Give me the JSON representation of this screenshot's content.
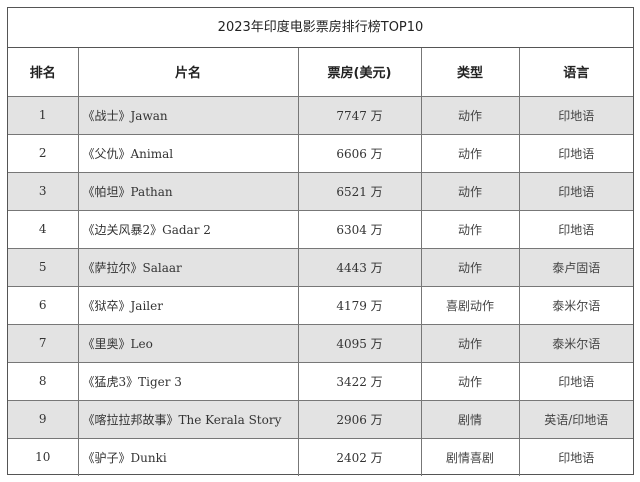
{
  "title": "2023年印度电影票房排行榜TOP10",
  "headers": {
    "rank": "排名",
    "film": "片名",
    "box_office": "票房(美元)",
    "genre": "类型",
    "language": "语言"
  },
  "rows": [
    {
      "rank": "1",
      "film": "《战士》Jawan",
      "box_office": "7747 万",
      "genre": "动作",
      "language": "印地语"
    },
    {
      "rank": "2",
      "film": "《父仇》Animal",
      "box_office": "6606 万",
      "genre": "动作",
      "language": "印地语"
    },
    {
      "rank": "3",
      "film": "《帕坦》Pathan",
      "box_office": "6521 万",
      "genre": "动作",
      "language": "印地语"
    },
    {
      "rank": "4",
      "film": "《边关风暴2》Gadar 2",
      "box_office": "6304 万",
      "genre": "动作",
      "language": "印地语"
    },
    {
      "rank": "5",
      "film": "《萨拉尔》Salaar",
      "box_office": "4443 万",
      "genre": "动作",
      "language": "泰卢固语"
    },
    {
      "rank": "6",
      "film": "《狱卒》Jailer",
      "box_office": "4179 万",
      "genre": "喜剧动作",
      "language": "泰米尔语"
    },
    {
      "rank": "7",
      "film": "《里奥》Leo",
      "box_office": "4095 万",
      "genre": "动作",
      "language": "泰米尔语"
    },
    {
      "rank": "8",
      "film": "《猛虎3》Tiger 3",
      "box_office": "3422 万",
      "genre": "动作",
      "language": "印地语"
    },
    {
      "rank": "9",
      "film": "《喀拉拉邦故事》The Kerala Story",
      "box_office": "2906 万",
      "genre": "剧情",
      "language": "英语/印地语"
    },
    {
      "rank": "10",
      "film": "《驴子》Dunki",
      "box_office": "2402 万",
      "genre": "剧情喜剧",
      "language": "印地语"
    }
  ],
  "colors": {
    "shaded_row": "#e3e3e3",
    "border": "#555555"
  }
}
